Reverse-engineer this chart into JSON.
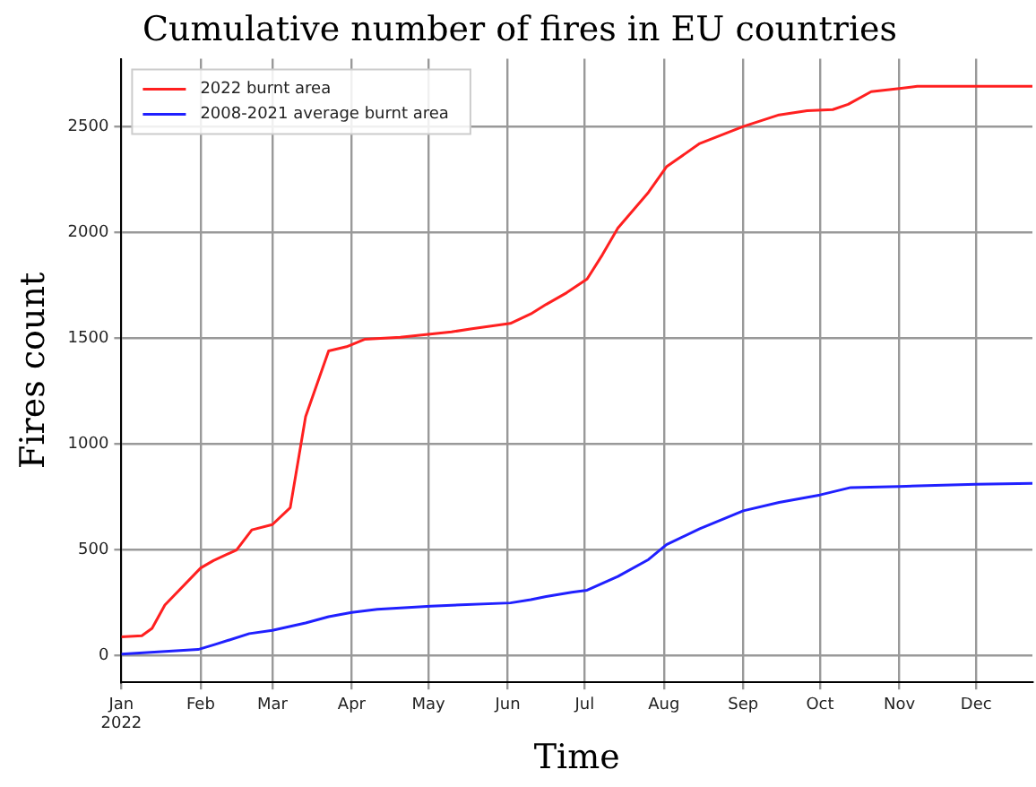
{
  "chart_data": {
    "type": "line",
    "title": "Cumulative number of fires in EU countries",
    "xlabel": "Time",
    "ylabel": "Fires count",
    "legend": "top left",
    "grid": true,
    "marker": "none",
    "line_style": "solid",
    "xlim": [
      "2022-01-01",
      "2022-12-23"
    ],
    "xticks": [
      {
        "value": "2022-01-01",
        "label": "Jan\n2022"
      },
      {
        "value": "2022-02-01",
        "label": "Feb"
      },
      {
        "value": "2022-03-01",
        "label": "Mar"
      },
      {
        "value": "2022-04-01",
        "label": "Apr"
      },
      {
        "value": "2022-05-01",
        "label": "May"
      },
      {
        "value": "2022-06-01",
        "label": "Jun"
      },
      {
        "value": "2022-07-01",
        "label": "Jul"
      },
      {
        "value": "2022-08-01",
        "label": "Aug"
      },
      {
        "value": "2022-09-01",
        "label": "Sep"
      },
      {
        "value": "2022-10-01",
        "label": "Oct"
      },
      {
        "value": "2022-11-01",
        "label": "Nov"
      },
      {
        "value": "2022-12-01",
        "label": "Dec"
      }
    ],
    "ylim": [
      -125,
      2820
    ],
    "yticks": [
      0,
      500,
      1000,
      1500,
      2000,
      2500
    ],
    "series": [
      {
        "name": "2022 burnt area",
        "color": "#ff2020",
        "x": [
          "2022-01-01",
          "2022-01-09",
          "2022-01-13",
          "2022-01-18",
          "2022-02-01",
          "2022-02-06",
          "2022-02-15",
          "2022-02-21",
          "2022-03-01",
          "2022-03-08",
          "2022-03-14",
          "2022-03-23",
          "2022-03-30",
          "2022-04-06",
          "2022-04-20",
          "2022-05-10",
          "2022-05-18",
          "2022-06-02",
          "2022-06-10",
          "2022-06-16",
          "2022-06-24",
          "2022-07-02",
          "2022-07-08",
          "2022-07-14",
          "2022-07-26",
          "2022-08-02",
          "2022-08-15",
          "2022-09-01",
          "2022-09-15",
          "2022-09-26",
          "2022-10-06",
          "2022-10-12",
          "2022-10-21",
          "2022-11-01",
          "2022-11-08",
          "2022-12-23"
        ],
        "values": [
          90,
          95,
          130,
          240,
          415,
          450,
          500,
          595,
          620,
          700,
          1130,
          1440,
          1460,
          1495,
          1505,
          1530,
          1545,
          1570,
          1615,
          1660,
          1715,
          1780,
          1895,
          2020,
          2190,
          2310,
          2420,
          2500,
          2555,
          2575,
          2580,
          2605,
          2665,
          2680,
          2690,
          2690
        ]
      },
      {
        "name": "2008-2021 average burnt area",
        "color": "#2020ff",
        "x": [
          "2022-01-01",
          "2022-01-31",
          "2022-02-07",
          "2022-02-20",
          "2022-03-01",
          "2022-03-14",
          "2022-03-23",
          "2022-04-01",
          "2022-04-11",
          "2022-05-02",
          "2022-06-02",
          "2022-06-10",
          "2022-06-16",
          "2022-06-26",
          "2022-07-02",
          "2022-07-14",
          "2022-07-26",
          "2022-08-02",
          "2022-08-15",
          "2022-09-01",
          "2022-09-15",
          "2022-10-01",
          "2022-10-13",
          "2022-11-01",
          "2022-12-01",
          "2022-12-23"
        ],
        "values": [
          8,
          30,
          55,
          105,
          120,
          155,
          185,
          205,
          220,
          235,
          250,
          265,
          280,
          300,
          310,
          375,
          455,
          525,
          600,
          685,
          725,
          760,
          795,
          800,
          810,
          815
        ]
      }
    ]
  }
}
